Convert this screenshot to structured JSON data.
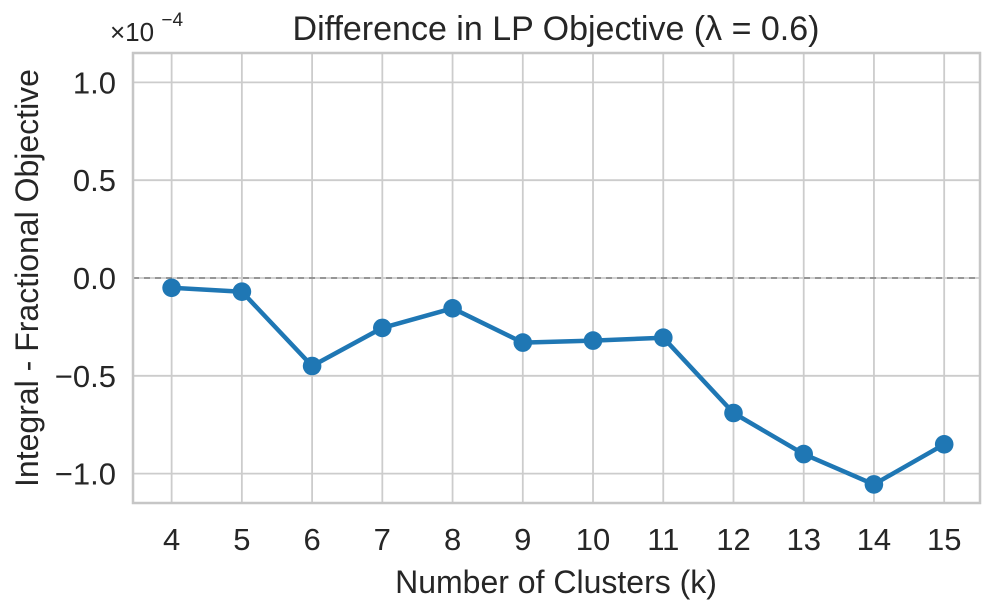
{
  "chart_data": {
    "type": "line",
    "title": "Difference in LP Objective (λ = 0.6)",
    "xlabel": "Number of Clusters (k)",
    "ylabel": "Integral - Fractional Objective",
    "offset_text": {
      "mantissa": "×10",
      "exponent": "−4",
      "combined": "×10⁻⁴"
    },
    "x": [
      4,
      5,
      6,
      7,
      8,
      9,
      10,
      11,
      12,
      13,
      14,
      15
    ],
    "y": [
      -5e-06,
      -7e-06,
      -4.5e-05,
      -2.55e-05,
      -1.55e-05,
      -3.3e-05,
      -3.2e-05,
      -3.05e-05,
      -6.9e-05,
      -9e-05,
      -0.0001055,
      -8.5e-05
    ],
    "xticks": [
      4,
      5,
      6,
      7,
      8,
      9,
      10,
      11,
      12,
      13,
      14,
      15
    ],
    "xticklabels": [
      "4",
      "5",
      "6",
      "7",
      "8",
      "9",
      "10",
      "11",
      "12",
      "13",
      "14",
      "15"
    ],
    "yticks": [
      0.0001,
      5e-05,
      0.0,
      -5e-05,
      -0.0001
    ],
    "yticklabels": [
      "1.0",
      "0.5",
      "0.0",
      "−0.5",
      "−1.0"
    ],
    "xlim": [
      3.45,
      15.51
    ],
    "ylim": [
      -0.000115,
      0.000115
    ],
    "grid": true,
    "legend": false,
    "marker": "circle",
    "zero_line": {
      "value": 0.0,
      "style": "dashed"
    },
    "colors": {
      "line": "#1f77b4",
      "marker": "#1f77b4",
      "grid": "#cccccc",
      "border": "#c6c6c6",
      "zero_line": "#808080",
      "text": "#262626",
      "background": "#ffffff"
    }
  }
}
